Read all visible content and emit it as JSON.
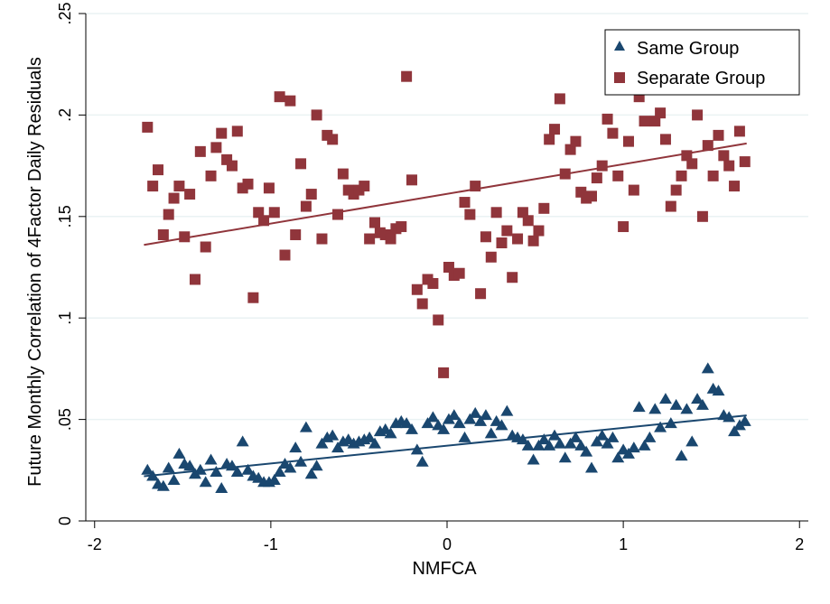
{
  "chart_data": {
    "type": "scatter",
    "title": "",
    "xlabel": "NMFCA",
    "ylabel": "Future Monthly Correlation of 4Factor Daily Residuals",
    "xlim": [
      -2.05,
      2.05
    ],
    "ylim": [
      0,
      0.25
    ],
    "x_ticks": [
      -2,
      -1,
      0,
      1,
      2
    ],
    "x_tick_labels": [
      "-2",
      "-1",
      "0",
      "1",
      "2"
    ],
    "y_ticks": [
      0,
      0.05,
      0.1,
      0.15,
      0.2,
      0.25
    ],
    "y_tick_labels": [
      "0",
      ".05",
      ".1",
      ".15",
      ".2",
      ".25"
    ],
    "grid": "horizontal",
    "legend_position": "top-right",
    "colors": {
      "same": "#1a476f",
      "separate": "#90353b",
      "grid": "#eaf2f3",
      "axis": "#000000"
    },
    "series": [
      {
        "name": "Same Group",
        "marker": "triangle",
        "color": "#1a476f",
        "fit_line": {
          "x": [
            -1.72,
            1.7
          ],
          "y": [
            0.022,
            0.052
          ]
        },
        "x": [
          -1.7,
          -1.67,
          -1.64,
          -1.61,
          -1.58,
          -1.55,
          -1.52,
          -1.49,
          -1.46,
          -1.43,
          -1.4,
          -1.37,
          -1.34,
          -1.31,
          -1.28,
          -1.25,
          -1.22,
          -1.19,
          -1.16,
          -1.13,
          -1.1,
          -1.07,
          -1.04,
          -1.01,
          -0.98,
          -0.95,
          -0.92,
          -0.89,
          -0.86,
          -0.83,
          -0.8,
          -0.77,
          -0.74,
          -0.71,
          -0.68,
          -0.65,
          -0.62,
          -0.59,
          -0.56,
          -0.53,
          -0.5,
          -0.47,
          -0.44,
          -0.41,
          -0.38,
          -0.35,
          -0.32,
          -0.29,
          -0.26,
          -0.23,
          -0.2,
          -0.17,
          -0.14,
          -0.11,
          -0.08,
          -0.05,
          -0.02,
          0.01,
          0.04,
          0.07,
          0.1,
          0.13,
          0.16,
          0.19,
          0.22,
          0.25,
          0.28,
          0.31,
          0.34,
          0.37,
          0.4,
          0.43,
          0.46,
          0.49,
          0.52,
          0.55,
          0.58,
          0.61,
          0.64,
          0.67,
          0.7,
          0.73,
          0.76,
          0.79,
          0.82,
          0.85,
          0.88,
          0.91,
          0.94,
          0.97,
          1.0,
          1.03,
          1.06,
          1.09,
          1.12,
          1.15,
          1.18,
          1.21,
          1.24,
          1.27,
          1.3,
          1.33,
          1.36,
          1.39,
          1.42,
          1.45,
          1.48,
          1.51,
          1.54,
          1.57,
          1.6,
          1.63,
          1.66,
          1.69
        ],
        "y": [
          0.025,
          0.022,
          0.018,
          0.017,
          0.026,
          0.02,
          0.033,
          0.028,
          0.027,
          0.023,
          0.025,
          0.019,
          0.03,
          0.024,
          0.016,
          0.028,
          0.027,
          0.024,
          0.039,
          0.025,
          0.022,
          0.021,
          0.019,
          0.019,
          0.02,
          0.024,
          0.028,
          0.026,
          0.036,
          0.029,
          0.046,
          0.023,
          0.027,
          0.038,
          0.041,
          0.042,
          0.036,
          0.039,
          0.04,
          0.038,
          0.039,
          0.04,
          0.041,
          0.038,
          0.044,
          0.045,
          0.043,
          0.048,
          0.049,
          0.048,
          0.045,
          0.035,
          0.029,
          0.048,
          0.051,
          0.047,
          0.045,
          0.05,
          0.052,
          0.048,
          0.041,
          0.05,
          0.053,
          0.049,
          0.052,
          0.043,
          0.049,
          0.047,
          0.054,
          0.042,
          0.041,
          0.04,
          0.037,
          0.03,
          0.037,
          0.04,
          0.037,
          0.042,
          0.038,
          0.031,
          0.038,
          0.041,
          0.037,
          0.034,
          0.026,
          0.039,
          0.042,
          0.038,
          0.041,
          0.031,
          0.035,
          0.033,
          0.036,
          0.056,
          0.037,
          0.041,
          0.055,
          0.046,
          0.06,
          0.048,
          0.057,
          0.032,
          0.055,
          0.039,
          0.06,
          0.057,
          0.075,
          0.065,
          0.064,
          0.052,
          0.051,
          0.044,
          0.047,
          0.049
        ]
      },
      {
        "name": "Separate Group",
        "marker": "square",
        "color": "#90353b",
        "fit_line": {
          "x": [
            -1.72,
            1.7
          ],
          "y": [
            0.136,
            0.186
          ]
        },
        "x": [
          -1.7,
          -1.67,
          -1.64,
          -1.61,
          -1.58,
          -1.55,
          -1.52,
          -1.49,
          -1.46,
          -1.43,
          -1.4,
          -1.37,
          -1.34,
          -1.31,
          -1.28,
          -1.25,
          -1.22,
          -1.19,
          -1.16,
          -1.13,
          -1.1,
          -1.07,
          -1.04,
          -1.01,
          -0.98,
          -0.95,
          -0.92,
          -0.89,
          -0.86,
          -0.83,
          -0.8,
          -0.77,
          -0.74,
          -0.71,
          -0.68,
          -0.65,
          -0.62,
          -0.59,
          -0.56,
          -0.53,
          -0.5,
          -0.47,
          -0.44,
          -0.41,
          -0.38,
          -0.35,
          -0.32,
          -0.29,
          -0.26,
          -0.23,
          -0.2,
          -0.17,
          -0.14,
          -0.11,
          -0.08,
          -0.05,
          -0.02,
          0.01,
          0.04,
          0.07,
          0.1,
          0.13,
          0.16,
          0.19,
          0.22,
          0.25,
          0.28,
          0.31,
          0.34,
          0.37,
          0.4,
          0.43,
          0.46,
          0.49,
          0.52,
          0.55,
          0.58,
          0.61,
          0.64,
          0.67,
          0.7,
          0.73,
          0.76,
          0.79,
          0.82,
          0.85,
          0.88,
          0.91,
          0.94,
          0.97,
          1.0,
          1.03,
          1.06,
          1.09,
          1.12,
          1.15,
          1.18,
          1.21,
          1.24,
          1.27,
          1.3,
          1.33,
          1.36,
          1.39,
          1.42,
          1.45,
          1.48,
          1.51,
          1.54,
          1.57,
          1.6,
          1.63,
          1.66,
          1.69
        ],
        "y": [
          0.194,
          0.165,
          0.173,
          0.141,
          0.151,
          0.159,
          0.165,
          0.14,
          0.161,
          0.119,
          0.182,
          0.135,
          0.17,
          0.184,
          0.191,
          0.178,
          0.175,
          0.192,
          0.164,
          0.166,
          0.11,
          0.152,
          0.148,
          0.164,
          0.152,
          0.209,
          0.131,
          0.207,
          0.141,
          0.176,
          0.155,
          0.161,
          0.2,
          0.139,
          0.19,
          0.188,
          0.151,
          0.171,
          0.163,
          0.161,
          0.163,
          0.165,
          0.139,
          0.147,
          0.142,
          0.141,
          0.139,
          0.144,
          0.145,
          0.219,
          0.168,
          0.114,
          0.107,
          0.119,
          0.117,
          0.099,
          0.073,
          0.125,
          0.121,
          0.122,
          0.157,
          0.151,
          0.165,
          0.112,
          0.14,
          0.13,
          0.152,
          0.137,
          0.143,
          0.12,
          0.139,
          0.152,
          0.148,
          0.138,
          0.143,
          0.154,
          0.188,
          0.193,
          0.208,
          0.171,
          0.183,
          0.187,
          0.162,
          0.159,
          0.16,
          0.169,
          0.175,
          0.198,
          0.191,
          0.17,
          0.145,
          0.187,
          0.163,
          0.209,
          0.197,
          0.216,
          0.197,
          0.201,
          0.188,
          0.155,
          0.163,
          0.17,
          0.18,
          0.176,
          0.2,
          0.15,
          0.185,
          0.17,
          0.19,
          0.18,
          0.175,
          0.165,
          0.192,
          0.177
        ]
      }
    ]
  }
}
